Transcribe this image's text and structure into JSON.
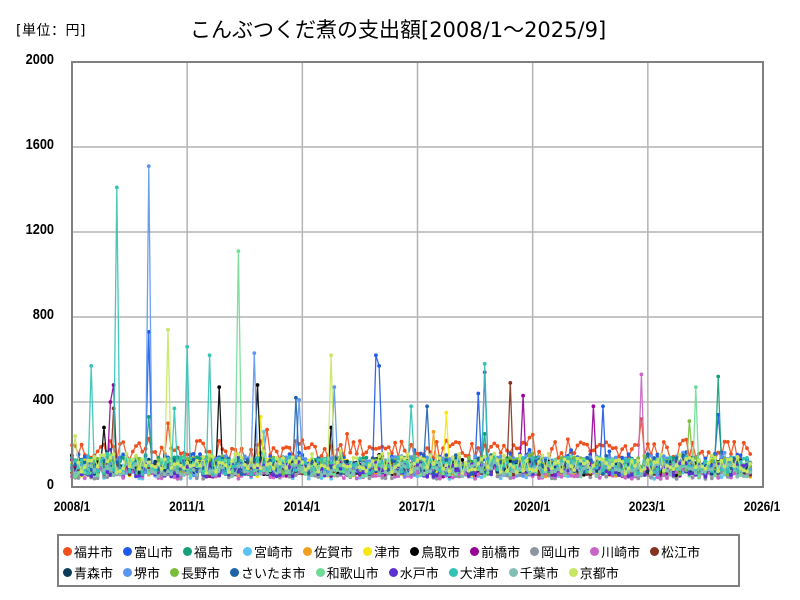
{
  "chart": {
    "unit_label": "[単位：円]",
    "title": "こんぶつくだ煮の支出額[2008/1～2025/9]"
  },
  "axes": {
    "y_ticks": [
      "2000",
      "1600",
      "1200",
      "800",
      "400",
      "0"
    ],
    "x_ticks": [
      "2008/1",
      "2011/1",
      "2014/1",
      "2017/1",
      "2020/1",
      "2023/1",
      "2026/1"
    ]
  },
  "legend": {
    "row1": [
      {
        "label": "福井市",
        "color": "#f0501e"
      },
      {
        "label": "富山市",
        "color": "#1e5ae6"
      },
      {
        "label": "福島市",
        "color": "#14a078"
      },
      {
        "label": "宮崎市",
        "color": "#5ac3f0"
      },
      {
        "label": "佐賀市",
        "color": "#f0a01e"
      },
      {
        "label": "津市",
        "color": "#f5e614"
      },
      {
        "label": "鳥取市",
        "color": "#000000"
      },
      {
        "label": "前橋市",
        "color": "#960096"
      },
      {
        "label": "岡山市",
        "color": "#8c96a0"
      },
      {
        "label": "川崎市",
        "color": "#c864c8"
      },
      {
        "label": "松江市",
        "color": "#82321e"
      }
    ],
    "row2": [
      {
        "label": "青森市",
        "color": "#0a3c5a"
      },
      {
        "label": "堺市",
        "color": "#5a96f0"
      },
      {
        "label": "長野市",
        "color": "#78be3c"
      },
      {
        "label": "さいたま市",
        "color": "#1e64aa"
      },
      {
        "label": "和歌山市",
        "color": "#6edc96"
      },
      {
        "label": "水戸市",
        "color": "#5a32d2"
      },
      {
        "label": "大津市",
        "color": "#32c3b4"
      },
      {
        "label": "千葉市",
        "color": "#82beb4"
      },
      {
        "label": "京都市",
        "color": "#c8e664"
      }
    ]
  },
  "chart_data": {
    "type": "line",
    "title": "こんぶつくだ煮の支出額[2008/1～2025/9]",
    "xlabel": "",
    "ylabel": "[単位：円]",
    "ylim": [
      0,
      2000
    ],
    "xlim": [
      "2008/1",
      "2026/1"
    ],
    "x_ticks": [
      "2008/1",
      "2011/1",
      "2014/1",
      "2017/1",
      "2020/1",
      "2023/1",
      "2026/1"
    ],
    "y_ticks": [
      0,
      400,
      800,
      1200,
      1600,
      2000
    ],
    "grid": true,
    "legend_position": "bottom",
    "x_range_months": {
      "start": "2008/1",
      "end": "2025/9",
      "count": 213
    },
    "series": [
      {
        "name": "福井市",
        "color": "#f0501e",
        "base": 170,
        "spread": 60,
        "peaks": [
          [
            2010,
            7,
            300
          ],
          [
            2013,
            2,
            270
          ],
          [
            2015,
            3,
            250
          ],
          [
            2022,
            11,
            320
          ]
        ]
      },
      {
        "name": "富山市",
        "color": "#1e5ae6",
        "base": 110,
        "spread": 60,
        "peaks": [
          [
            2010,
            1,
            730
          ],
          [
            2015,
            12,
            620
          ],
          [
            2016,
            1,
            570
          ],
          [
            2018,
            8,
            440
          ],
          [
            2021,
            11,
            380
          ],
          [
            2024,
            11,
            340
          ]
        ]
      },
      {
        "name": "福島市",
        "color": "#14a078",
        "base": 100,
        "spread": 50,
        "peaks": [
          [
            2010,
            1,
            330
          ],
          [
            2024,
            11,
            520
          ],
          [
            2018,
            10,
            250
          ]
        ]
      },
      {
        "name": "宮崎市",
        "color": "#5ac3f0",
        "base": 70,
        "spread": 40,
        "peaks": [
          [
            2013,
            1,
            260
          ]
        ]
      },
      {
        "name": "佐賀市",
        "color": "#f0a01e",
        "base": 80,
        "spread": 40,
        "peaks": [
          [
            2017,
            6,
            260
          ]
        ]
      },
      {
        "name": "津市",
        "color": "#f5e614",
        "base": 90,
        "spread": 50,
        "peaks": [
          [
            2012,
            12,
            330
          ],
          [
            2017,
            10,
            350
          ]
        ]
      },
      {
        "name": "鳥取市",
        "color": "#000000",
        "base": 90,
        "spread": 50,
        "peaks": [
          [
            2008,
            11,
            280
          ],
          [
            2011,
            11,
            470
          ],
          [
            2012,
            11,
            480
          ],
          [
            2014,
            10,
            280
          ]
        ]
      },
      {
        "name": "前橋市",
        "color": "#960096",
        "base": 80,
        "spread": 40,
        "peaks": [
          [
            2009,
            2,
            480
          ],
          [
            2009,
            1,
            400
          ],
          [
            2019,
            10,
            430
          ],
          [
            2021,
            8,
            380
          ]
        ]
      },
      {
        "name": "岡山市",
        "color": "#8c96a0",
        "base": 70,
        "spread": 40,
        "peaks": []
      },
      {
        "name": "川崎市",
        "color": "#c864c8",
        "base": 70,
        "spread": 40,
        "peaks": [
          [
            2022,
            11,
            530
          ]
        ]
      },
      {
        "name": "松江市",
        "color": "#82321e",
        "base": 90,
        "spread": 40,
        "peaks": [
          [
            2009,
            2,
            370
          ],
          [
            2019,
            6,
            490
          ]
        ]
      },
      {
        "name": "青森市",
        "color": "#0a3c5a",
        "base": 90,
        "spread": 40,
        "peaks": []
      },
      {
        "name": "堺市",
        "color": "#5a96f0",
        "base": 100,
        "spread": 60,
        "peaks": [
          [
            2010,
            1,
            1510
          ],
          [
            2012,
            10,
            630
          ],
          [
            2013,
            12,
            410
          ],
          [
            2014,
            11,
            470
          ]
        ]
      },
      {
        "name": "長野市",
        "color": "#78be3c",
        "base": 100,
        "spread": 50,
        "peaks": [
          [
            2024,
            2,
            310
          ]
        ]
      },
      {
        "name": "さいたま市",
        "color": "#1e64aa",
        "base": 100,
        "spread": 50,
        "peaks": [
          [
            2013,
            11,
            420
          ],
          [
            2017,
            4,
            380
          ]
        ]
      },
      {
        "name": "和歌山市",
        "color": "#6edc96",
        "base": 90,
        "spread": 50,
        "peaks": [
          [
            2012,
            5,
            1110
          ],
          [
            2024,
            4,
            470
          ]
        ]
      },
      {
        "name": "水戸市",
        "color": "#5a32d2",
        "base": 80,
        "spread": 40,
        "peaks": [
          [
            2018,
            10,
            540
          ]
        ]
      },
      {
        "name": "大津市",
        "color": "#32c3b4",
        "base": 100,
        "spread": 50,
        "peaks": [
          [
            2008,
            7,
            570
          ],
          [
            2009,
            3,
            1410
          ],
          [
            2010,
            9,
            370
          ],
          [
            2011,
            1,
            660
          ],
          [
            2011,
            8,
            620
          ],
          [
            2016,
            11,
            380
          ],
          [
            2018,
            10,
            580
          ]
        ]
      },
      {
        "name": "千葉市",
        "color": "#82beb4",
        "base": 80,
        "spread": 40,
        "peaks": []
      },
      {
        "name": "京都市",
        "color": "#c8e664",
        "base": 110,
        "spread": 60,
        "peaks": [
          [
            2008,
            2,
            240
          ],
          [
            2010,
            7,
            740
          ],
          [
            2014,
            10,
            620
          ]
        ]
      }
    ]
  }
}
